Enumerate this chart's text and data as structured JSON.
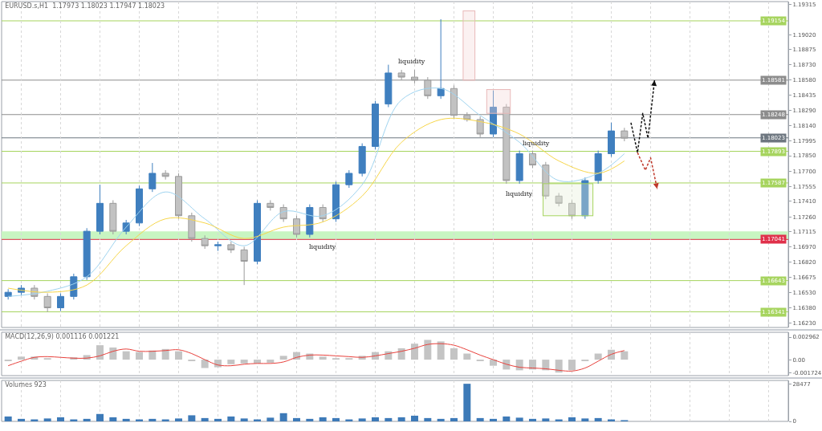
{
  "chart_data": [
    {
      "type": "candlestick",
      "title": "EURUSD.s,H1  1.17973 1.18023 1.17947 1.18023",
      "categories": [
        null,
        null,
        null,
        null,
        null,
        null,
        null,
        null,
        null,
        null,
        null,
        null,
        null,
        null,
        null,
        null,
        null,
        null,
        null,
        null,
        null,
        null,
        null,
        null,
        null,
        null,
        null,
        null,
        null,
        null,
        null,
        null,
        null,
        null,
        null,
        null,
        null,
        null,
        null,
        null,
        null,
        null,
        null,
        null,
        null,
        null,
        null,
        null,
        null,
        null,
        null,
        null,
        null,
        null,
        null,
        null,
        null,
        null,
        null,
        null
      ],
      "ohlc": [
        [
          1.1649,
          1.1656,
          1.1646,
          1.1653
        ],
        [
          1.1653,
          1.166,
          1.165,
          1.1657
        ],
        [
          1.1657,
          1.166,
          1.1646,
          1.1649
        ],
        [
          1.1649,
          1.1652,
          1.1634,
          1.1638
        ],
        [
          1.1638,
          1.1652,
          1.1635,
          1.1649
        ],
        [
          1.1649,
          1.1671,
          1.1646,
          1.1668
        ],
        [
          1.1668,
          1.1715,
          1.1665,
          1.1712
        ],
        [
          1.1712,
          1.1757,
          1.1709,
          1.1739
        ],
        [
          1.1739,
          1.1742,
          1.1709,
          1.1712
        ],
        [
          1.1712,
          1.1723,
          1.1709,
          1.172
        ],
        [
          1.172,
          1.1756,
          1.1717,
          1.1753
        ],
        [
          1.1753,
          1.1778,
          1.175,
          1.1768
        ],
        [
          1.1768,
          1.1771,
          1.1762,
          1.1765
        ],
        [
          1.1765,
          1.1768,
          1.1724,
          1.1727
        ],
        [
          1.1727,
          1.173,
          1.1702,
          1.1705
        ],
        [
          1.1705,
          1.1708,
          1.1695,
          1.1698
        ],
        [
          1.1698,
          1.1702,
          1.1693,
          1.1699
        ],
        [
          1.1699,
          1.1702,
          1.1691,
          1.1694
        ],
        [
          1.1694,
          1.1697,
          1.166,
          1.1683
        ],
        [
          1.1683,
          1.1742,
          1.168,
          1.1739
        ],
        [
          1.1739,
          1.1742,
          1.1732,
          1.1735
        ],
        [
          1.1735,
          1.1738,
          1.1721,
          1.1724
        ],
        [
          1.1724,
          1.1727,
          1.1706,
          1.1709
        ],
        [
          1.1709,
          1.1738,
          1.1706,
          1.1735
        ],
        [
          1.1735,
          1.1738,
          1.1721,
          1.1724
        ],
        [
          1.1724,
          1.176,
          1.1721,
          1.1757
        ],
        [
          1.1757,
          1.1771,
          1.1754,
          1.1768
        ],
        [
          1.1768,
          1.1797,
          1.1765,
          1.1794
        ],
        [
          1.1794,
          1.1838,
          1.1791,
          1.1835
        ],
        [
          1.1835,
          1.1873,
          1.1832,
          1.1865
        ],
        [
          1.1865,
          1.1868,
          1.1858,
          1.1861
        ],
        [
          1.1861,
          1.1868,
          1.1855,
          1.1858
        ],
        [
          1.1858,
          1.1861,
          1.184,
          1.1843
        ],
        [
          1.1843,
          1.1917,
          1.184,
          1.185
        ],
        [
          1.185,
          1.1853,
          1.1821,
          1.1824
        ],
        [
          1.1824,
          1.1827,
          1.1818,
          1.182
        ],
        [
          1.182,
          1.1823,
          1.1803,
          1.1806
        ],
        [
          1.1806,
          1.1848,
          1.1803,
          1.1832
        ],
        [
          1.1832,
          1.1835,
          1.1758,
          1.1761
        ],
        [
          1.1761,
          1.179,
          1.1758,
          1.1787
        ],
        [
          1.1787,
          1.179,
          1.1773,
          1.1776
        ],
        [
          1.1776,
          1.1779,
          1.1743,
          1.1746
        ],
        [
          1.1746,
          1.1749,
          1.1736,
          1.1739
        ],
        [
          1.1739,
          1.1742,
          1.1724,
          1.1727
        ],
        [
          1.1727,
          1.1764,
          1.1724,
          1.1761
        ],
        [
          1.1761,
          1.179,
          1.1758,
          1.1787
        ],
        [
          1.1787,
          1.1817,
          1.1784,
          1.1809
        ],
        [
          1.1809,
          1.1812,
          1.1799,
          1.1802
        ],
        null,
        null,
        null,
        null,
        null,
        null,
        null,
        null,
        null,
        null,
        null,
        null
      ],
      "series": [
        {
          "type": "line",
          "color": "#9fd4f0",
          "values": [
            1.1649,
            null,
            null,
            1.1654,
            null,
            null,
            1.1668,
            null,
            null,
            1.1716,
            null,
            null,
            1.175,
            null,
            null,
            1.1724,
            null,
            null,
            1.1698,
            null,
            null,
            1.1731,
            null,
            null,
            1.1727,
            null,
            null,
            1.1757,
            null,
            null,
            1.1839,
            null,
            null,
            1.185,
            null,
            null,
            1.1824,
            null,
            null,
            1.1798,
            null,
            null,
            1.1761,
            null,
            null,
            1.1768,
            null,
            1.1787,
            null,
            null,
            null,
            null,
            null,
            null,
            null,
            null,
            null,
            null,
            null,
            null
          ]
        },
        {
          "type": "line",
          "color": "#f7d64a",
          "values": [
            1.1657,
            null,
            null,
            1.1653,
            null,
            null,
            1.166,
            null,
            null,
            1.1698,
            null,
            null,
            1.1724,
            null,
            null,
            1.172,
            null,
            null,
            1.1705,
            null,
            null,
            1.1716,
            null,
            null,
            1.1721,
            null,
            null,
            1.1746,
            null,
            null,
            1.1798,
            null,
            null,
            1.182,
            null,
            null,
            1.1818,
            null,
            null,
            1.1806,
            null,
            null,
            1.178,
            null,
            null,
            1.1768,
            null,
            1.178,
            null,
            null,
            null,
            null,
            null,
            null,
            null,
            null,
            null,
            null,
            null,
            null
          ]
        }
      ],
      "annotations": [
        "liquidity",
        "liquidity",
        "liquidity",
        "liquidity"
      ],
      "ref_lines": [
        {
          "axis": "y",
          "value": 1.19154,
          "label": "1.19154",
          "color": "#a6d45e"
        },
        {
          "axis": "y",
          "value": 1.18581,
          "label": "1.18581",
          "color": "#8c8c8c"
        },
        {
          "axis": "y",
          "value": 1.18248,
          "label": "1.18248",
          "color": "#8c8c8c"
        },
        {
          "axis": "y",
          "value": 1.18023,
          "label": "1.18023",
          "color": "#6e7780"
        },
        {
          "axis": "y",
          "value": 1.17893,
          "label": "1.17893",
          "color": "#a6d45e"
        },
        {
          "axis": "y",
          "value": 1.17587,
          "label": "1.17587",
          "color": "#a6d45e"
        },
        {
          "axis": "y",
          "value": 1.17041,
          "label": "1.17041",
          "color": "#e0304a"
        },
        {
          "axis": "y",
          "value": 1.16643,
          "label": "1.16643",
          "color": "#a6d45e"
        },
        {
          "axis": "y",
          "value": 1.16341,
          "label": "1.16341",
          "color": "#a6d45e"
        }
      ],
      "bands": [
        {
          "axis": "y",
          "from": 1.1704,
          "to": 1.1712,
          "color": "#c8f5c2"
        }
      ],
      "ylim": [
        1.1619,
        1.1934
      ],
      "yticks": [
        1.19315,
        {
          "value": 1.1902,
          "label": "1.19020"
        },
        1.18875,
        {
          "value": 1.1873,
          "label": "1.18730"
        },
        {
          "value": 1.1858,
          "label": "1.18580"
        },
        1.18435,
        {
          "value": 1.1829,
          "label": "1.18290"
        },
        {
          "value": 1.1814,
          "label": "1.18140"
        },
        1.17995,
        {
          "value": 1.1785,
          "label": "1.17850"
        },
        {
          "value": 1.177,
          "label": "1.17700"
        },
        1.17555,
        {
          "value": 1.1741,
          "label": "1.17410"
        },
        {
          "value": 1.1726,
          "label": "1.17260"
        },
        1.17115,
        {
          "value": 1.1697,
          "label": "1.16970"
        },
        {
          "value": 1.1682,
          "label": "1.16820"
        },
        1.16675,
        {
          "value": 1.1653,
          "label": "1.16530"
        },
        {
          "value": 1.1638,
          "label": "1.16380"
        },
        {
          "value": 1.1623,
          "label": "1.16230"
        }
      ],
      "tick_labels": "y",
      "grid": "x"
    },
    {
      "type": "bar",
      "title": "MACD(12,26,9) 0.001116 0.001221",
      "categories": [
        null,
        null,
        null,
        null,
        null,
        null,
        null,
        null,
        null,
        null,
        null,
        null,
        null,
        null,
        null,
        null,
        null,
        null,
        null,
        null,
        null,
        null,
        null,
        null,
        null,
        null,
        null,
        null,
        null,
        null,
        null,
        null,
        null,
        null,
        null,
        null,
        null,
        null,
        null,
        null,
        null,
        null,
        null,
        null,
        null,
        null,
        null,
        null,
        null,
        null,
        null,
        null,
        null,
        null,
        null,
        null,
        null,
        null,
        null,
        null
      ],
      "series": [
        {
          "type": "bar",
          "color": "#c4c4c4",
          "values": [
            -0.0002,
            0.0004,
            0.0004,
            0.0002,
            0.0,
            0.0003,
            0.0006,
            0.0019,
            0.0016,
            0.0011,
            0.001,
            0.0012,
            0.0014,
            0.0011,
            -0.0002,
            -0.0011,
            -0.001,
            -0.0006,
            -0.0005,
            -0.0005,
            -0.0004,
            0.0005,
            0.001,
            0.0008,
            0.0004,
            0.0002,
            0.0002,
            0.0005,
            0.001,
            0.0011,
            0.0015,
            0.0021,
            0.0026,
            0.0024,
            0.0015,
            0.0008,
            -0.0002,
            -0.0008,
            -0.0013,
            -0.0014,
            -0.0013,
            -0.0014,
            -0.0017,
            -0.0014,
            -0.0002,
            0.0008,
            0.0013,
            0.0011,
            null,
            null,
            null,
            null,
            null,
            null,
            null,
            null,
            null,
            null,
            null,
            null
          ]
        },
        {
          "type": "line",
          "color": "#e8413c",
          "values": [
            -0.0008,
            -0.0002,
            0.0003,
            0.0004,
            0.0003,
            0.0002,
            0.0002,
            0.0005,
            0.0011,
            0.0014,
            0.0011,
            0.0011,
            0.0012,
            0.0013,
            0.0008,
            0.0,
            -0.0007,
            -0.0008,
            -0.0006,
            -0.0005,
            -0.0005,
            -0.0003,
            0.0003,
            0.0006,
            0.0006,
            0.0005,
            0.0004,
            0.0003,
            0.0005,
            0.0008,
            0.0011,
            0.0015,
            0.002,
            0.0021,
            0.0019,
            0.0013,
            0.0006,
            0.0,
            -0.0006,
            -0.001,
            -0.0011,
            -0.0012,
            -0.0014,
            -0.0015,
            -0.0011,
            -0.0002,
            0.0007,
            0.0012,
            null,
            null,
            null,
            null,
            null,
            null,
            null,
            null,
            null,
            null,
            null,
            null
          ]
        }
      ],
      "ylim": [
        -0.0021,
        0.0036
      ],
      "yticks": [
        0.002962,
        {
          "value": 0,
          "label": "0.00"
        },
        -0.001724
      ],
      "tick_labels": "y",
      "grid": "x"
    },
    {
      "type": "bar",
      "title": "Volumes 923",
      "categories": [
        null,
        null,
        null,
        null,
        null,
        null,
        null,
        null,
        null,
        null,
        null,
        null,
        null,
        null,
        null,
        null,
        null,
        null,
        null,
        null,
        null,
        null,
        null,
        null,
        null,
        null,
        null,
        null,
        null,
        null,
        null,
        null,
        null,
        null,
        null,
        null,
        null,
        null,
        null,
        null,
        null,
        null,
        null,
        null,
        null,
        null,
        null,
        null,
        null,
        null,
        null,
        null,
        null,
        null,
        null,
        null,
        null,
        null,
        null,
        null
      ],
      "color": "#3d7ab8",
      "values": [
        3700,
        1900,
        1500,
        2200,
        3100,
        1500,
        1900,
        5600,
        3100,
        1900,
        1500,
        1900,
        1500,
        2200,
        4600,
        2500,
        1900,
        3700,
        2200,
        1500,
        2800,
        6200,
        2500,
        1900,
        3100,
        2500,
        1500,
        2200,
        3100,
        2500,
        3100,
        4300,
        2500,
        1900,
        2500,
        28477,
        2500,
        1900,
        3700,
        2800,
        1900,
        2200,
        1500,
        3100,
        2200,
        2500,
        1500,
        923,
        null,
        null,
        null,
        null,
        null,
        null,
        null,
        null,
        null,
        null,
        null,
        null
      ],
      "ylim": [
        0,
        31000
      ],
      "yticks": [
        0,
        28477
      ],
      "tick_labels": "y",
      "grid": "x"
    }
  ]
}
